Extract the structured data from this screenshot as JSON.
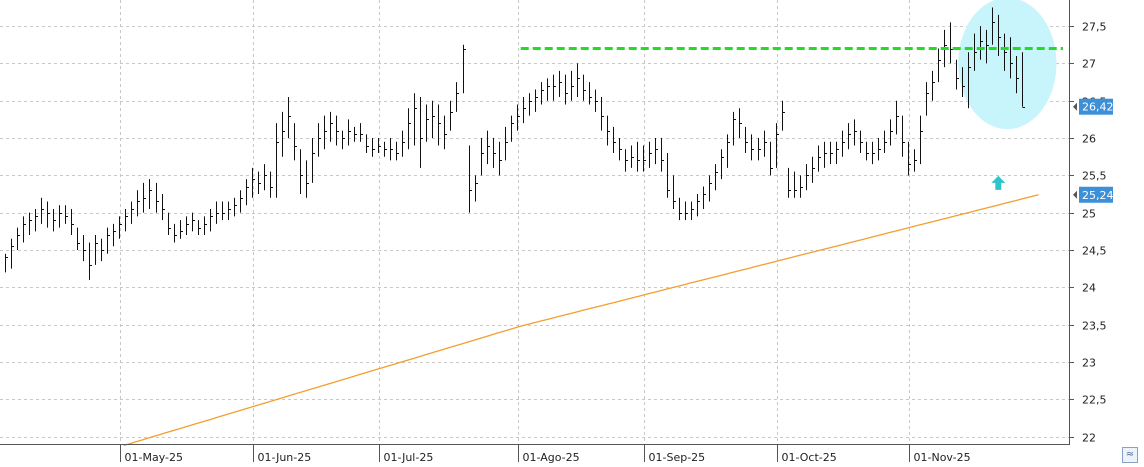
{
  "chart_data": {
    "type": "ohlc",
    "ylim": [
      21.9,
      27.85
    ],
    "y_ticks": [
      "22",
      "22,5",
      "23",
      "23,5",
      "24",
      "24,5",
      "25",
      "25,5",
      "26",
      "26,5",
      "27",
      "27,5"
    ],
    "y_tick_values": [
      22,
      22.5,
      23,
      23.5,
      24,
      24.5,
      25,
      25.5,
      26,
      26.5,
      27,
      27.5
    ],
    "x_labels": [
      "01-May-25",
      "01-Jun-25",
      "01-Jul-25",
      "01-Ago-25",
      "01-Sep-25",
      "01-Oct-25",
      "01-Nov-25"
    ],
    "x_label_index": [
      20,
      42,
      63,
      86,
      107,
      129,
      151
    ],
    "bars": [
      [
        24.45,
        24.2,
        24.4
      ],
      [
        24.65,
        24.25,
        24.55
      ],
      [
        24.8,
        24.5,
        24.7
      ],
      [
        24.95,
        24.6,
        24.85
      ],
      [
        25.0,
        24.7,
        24.9
      ],
      [
        25.05,
        24.75,
        24.95
      ],
      [
        25.2,
        24.85,
        25.05
      ],
      [
        25.15,
        24.8,
        25.0
      ],
      [
        25.05,
        24.75,
        24.9
      ],
      [
        25.1,
        24.8,
        25.0
      ],
      [
        25.1,
        24.85,
        24.95
      ],
      [
        25.05,
        24.7,
        24.85
      ],
      [
        24.8,
        24.5,
        24.6
      ],
      [
        24.7,
        24.35,
        24.5
      ],
      [
        24.6,
        24.1,
        24.3
      ],
      [
        24.7,
        24.3,
        24.6
      ],
      [
        24.65,
        24.35,
        24.5
      ],
      [
        24.8,
        24.45,
        24.7
      ],
      [
        24.85,
        24.55,
        24.75
      ],
      [
        24.95,
        24.65,
        24.85
      ],
      [
        25.05,
        24.75,
        24.95
      ],
      [
        25.15,
        24.85,
        25.05
      ],
      [
        25.3,
        24.95,
        25.15
      ],
      [
        25.4,
        25.0,
        25.2
      ],
      [
        25.45,
        25.05,
        25.3
      ],
      [
        25.4,
        25.0,
        25.15
      ],
      [
        25.25,
        24.9,
        25.05
      ],
      [
        25.0,
        24.7,
        24.8
      ],
      [
        24.85,
        24.6,
        24.7
      ],
      [
        24.9,
        24.65,
        24.75
      ],
      [
        24.95,
        24.7,
        24.85
      ],
      [
        25.0,
        24.75,
        24.9
      ],
      [
        24.9,
        24.7,
        24.8
      ],
      [
        24.95,
        24.7,
        24.85
      ],
      [
        25.05,
        24.75,
        24.95
      ],
      [
        25.15,
        24.85,
        25.0
      ],
      [
        25.15,
        24.9,
        25.0
      ],
      [
        25.15,
        24.9,
        25.05
      ],
      [
        25.2,
        24.95,
        25.1
      ],
      [
        25.3,
        25.0,
        25.2
      ],
      [
        25.45,
        25.1,
        25.35
      ],
      [
        25.6,
        25.2,
        25.45
      ],
      [
        25.55,
        25.25,
        25.4
      ],
      [
        25.65,
        25.3,
        25.5
      ],
      [
        25.55,
        25.2,
        25.35
      ],
      [
        26.2,
        25.2,
        25.95
      ],
      [
        26.35,
        25.75,
        26.1
      ],
      [
        26.55,
        26.0,
        26.3
      ],
      [
        26.2,
        25.7,
        25.9
      ],
      [
        25.85,
        25.25,
        25.5
      ],
      [
        25.7,
        25.2,
        25.4
      ],
      [
        26.0,
        25.4,
        25.8
      ],
      [
        26.2,
        25.75,
        26.0
      ],
      [
        26.3,
        25.85,
        26.1
      ],
      [
        26.35,
        25.95,
        26.2
      ],
      [
        26.3,
        25.9,
        26.1
      ],
      [
        26.1,
        25.85,
        26.0
      ],
      [
        26.25,
        25.9,
        26.1
      ],
      [
        26.15,
        25.95,
        26.05
      ],
      [
        26.2,
        25.95,
        26.05
      ],
      [
        26.05,
        25.8,
        25.9
      ],
      [
        26.0,
        25.75,
        25.85
      ],
      [
        26.0,
        25.8,
        25.9
      ],
      [
        25.95,
        25.75,
        25.85
      ],
      [
        26.0,
        25.7,
        25.85
      ],
      [
        25.95,
        25.7,
        25.8
      ],
      [
        26.1,
        25.75,
        25.95
      ],
      [
        26.4,
        25.85,
        26.2
      ],
      [
        26.6,
        25.9,
        26.4
      ],
      [
        26.55,
        25.6,
        26.0
      ],
      [
        26.45,
        25.95,
        26.25
      ],
      [
        26.5,
        26.0,
        26.3
      ],
      [
        26.45,
        25.9,
        26.2
      ],
      [
        26.3,
        25.85,
        26.05
      ],
      [
        26.5,
        26.1,
        26.35
      ],
      [
        26.75,
        26.35,
        26.6
      ],
      [
        27.25,
        26.6,
        27.2
      ],
      [
        25.9,
        25.0,
        25.3
      ],
      [
        25.5,
        25.15,
        25.4
      ],
      [
        26.0,
        25.5,
        25.8
      ],
      [
        26.1,
        25.65,
        25.9
      ],
      [
        26.0,
        25.6,
        25.8
      ],
      [
        25.95,
        25.5,
        25.7
      ],
      [
        26.15,
        25.7,
        25.95
      ],
      [
        26.3,
        25.95,
        26.2
      ],
      [
        26.45,
        26.1,
        26.3
      ],
      [
        26.55,
        26.2,
        26.4
      ],
      [
        26.6,
        26.3,
        26.5
      ],
      [
        26.65,
        26.35,
        26.55
      ],
      [
        26.75,
        26.45,
        26.65
      ],
      [
        26.8,
        26.5,
        26.7
      ],
      [
        26.85,
        26.5,
        26.7
      ],
      [
        26.9,
        26.55,
        26.75
      ],
      [
        26.85,
        26.45,
        26.6
      ],
      [
        26.9,
        26.5,
        26.7
      ],
      [
        27.0,
        26.55,
        26.8
      ],
      [
        26.85,
        26.5,
        26.65
      ],
      [
        26.75,
        26.45,
        26.55
      ],
      [
        26.65,
        26.35,
        26.5
      ],
      [
        26.55,
        26.1,
        26.3
      ],
      [
        26.3,
        25.9,
        26.1
      ],
      [
        26.15,
        25.8,
        25.95
      ],
      [
        26.0,
        25.7,
        25.85
      ],
      [
        25.85,
        25.55,
        25.7
      ],
      [
        25.9,
        25.6,
        25.75
      ],
      [
        25.95,
        25.55,
        25.7
      ],
      [
        25.9,
        25.55,
        25.7
      ],
      [
        25.95,
        25.6,
        25.8
      ],
      [
        26.0,
        25.65,
        25.85
      ],
      [
        26.0,
        25.55,
        25.7
      ],
      [
        25.8,
        25.2,
        25.3
      ],
      [
        25.5,
        25.05,
        25.15
      ],
      [
        25.2,
        24.9,
        25.0
      ],
      [
        25.15,
        24.9,
        25.0
      ],
      [
        25.15,
        24.9,
        25.05
      ],
      [
        25.25,
        24.95,
        25.15
      ],
      [
        25.35,
        25.05,
        25.25
      ],
      [
        25.5,
        25.15,
        25.4
      ],
      [
        25.65,
        25.3,
        25.55
      ],
      [
        25.85,
        25.45,
        25.75
      ],
      [
        26.05,
        25.6,
        25.95
      ],
      [
        26.35,
        25.9,
        26.25
      ],
      [
        26.4,
        26.0,
        26.2
      ],
      [
        26.15,
        25.8,
        25.95
      ],
      [
        26.05,
        25.7,
        25.85
      ],
      [
        26.0,
        25.7,
        25.85
      ],
      [
        26.1,
        25.75,
        25.95
      ],
      [
        25.95,
        25.5,
        25.6
      ],
      [
        26.2,
        25.6,
        26.05
      ],
      [
        26.5,
        26.1,
        26.35
      ],
      [
        25.6,
        25.2,
        25.3
      ],
      [
        25.55,
        25.2,
        25.3
      ],
      [
        25.5,
        25.2,
        25.35
      ],
      [
        25.65,
        25.3,
        25.5
      ],
      [
        25.75,
        25.4,
        25.6
      ],
      [
        25.9,
        25.55,
        25.75
      ],
      [
        25.95,
        25.6,
        25.8
      ],
      [
        25.95,
        25.65,
        25.8
      ],
      [
        25.95,
        25.65,
        25.85
      ],
      [
        26.1,
        25.75,
        25.95
      ],
      [
        26.2,
        25.85,
        26.05
      ],
      [
        26.25,
        25.9,
        26.1
      ],
      [
        26.1,
        25.8,
        25.95
      ],
      [
        25.95,
        25.7,
        25.8
      ],
      [
        25.95,
        25.65,
        25.8
      ],
      [
        26.0,
        25.7,
        25.85
      ],
      [
        26.1,
        25.8,
        25.95
      ],
      [
        26.25,
        25.9,
        26.1
      ],
      [
        26.5,
        26.05,
        26.3
      ],
      [
        26.3,
        25.75,
        25.95
      ],
      [
        25.95,
        25.5,
        25.65
      ],
      [
        25.85,
        25.55,
        25.7
      ],
      [
        26.3,
        25.65,
        26.1
      ],
      [
        26.75,
        26.3,
        26.6
      ],
      [
        26.9,
        26.5,
        26.75
      ],
      [
        27.2,
        26.75,
        27.05
      ],
      [
        27.45,
        26.95,
        27.25
      ],
      [
        27.55,
        27.0,
        27.2
      ],
      [
        27.05,
        26.65,
        26.8
      ],
      [
        26.95,
        26.55,
        26.7
      ],
      [
        27.15,
        26.4,
        26.95
      ],
      [
        27.4,
        26.9,
        27.15
      ],
      [
        27.5,
        27.05,
        27.3
      ],
      [
        27.45,
        27.0,
        27.25
      ],
      [
        27.75,
        27.25,
        27.55
      ],
      [
        27.65,
        27.1,
        27.35
      ],
      [
        27.4,
        26.9,
        27.15
      ],
      [
        27.35,
        26.8,
        27.0
      ],
      [
        27.1,
        26.6,
        26.8
      ],
      [
        27.15,
        26.42,
        26.42
      ]
    ],
    "moving_average": {
      "start_index": 20,
      "end_index": 172,
      "start_value": 21.88,
      "end_value": 25.24,
      "mid_value": 23.48,
      "mid_index": 86
    },
    "resistance_level": 27.2,
    "resistance_from_index": 86,
    "highlight": {
      "from_index": 159,
      "to_index": 174,
      "center_value": 27.0,
      "half_range": 0.88
    },
    "arrow_index": 165,
    "arrow_value": 25.4,
    "last_price": 26.42,
    "last_price_label": "26,42",
    "ma_last_label": "25,24",
    "colors": {
      "bars": "#111111",
      "moving_average": "#f0a030",
      "resistance": "#22dd22",
      "highlight": "#c8f4fb",
      "arrow": "#2ec4c8",
      "price_tag": "#3d8fd8",
      "grid": "#c8c8c8"
    },
    "grid": true
  },
  "corner_button": {
    "icon": "wave-icon",
    "glyph": "≈"
  }
}
